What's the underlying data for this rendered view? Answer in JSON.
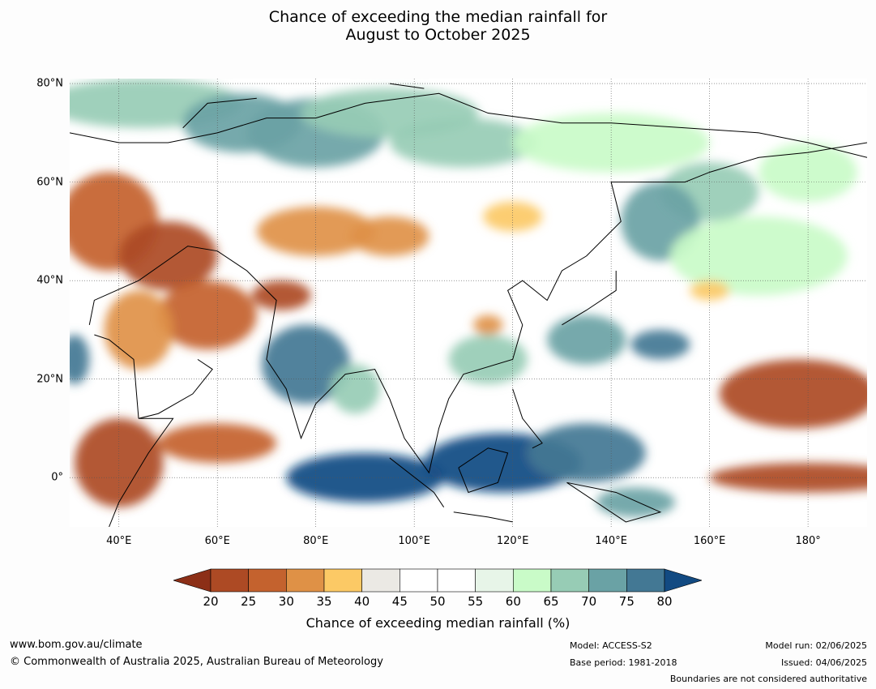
{
  "title": {
    "line1": "Chance of exceeding the median rainfall for",
    "line2": "August to October 2025"
  },
  "map": {
    "extent": {
      "lon_min": 30,
      "lon_max": 192,
      "lat_min": -10,
      "lat_max": 81
    },
    "lat_labels": [
      {
        "lat": 80,
        "label": "80°N"
      },
      {
        "lat": 60,
        "label": "60°N"
      },
      {
        "lat": 40,
        "label": "40°N"
      },
      {
        "lat": 20,
        "label": "20°N"
      },
      {
        "lat": 0,
        "label": "0°"
      }
    ],
    "lon_labels": [
      {
        "lon": 40,
        "label": "40°E"
      },
      {
        "lon": 60,
        "label": "60°E"
      },
      {
        "lon": 80,
        "label": "80°E"
      },
      {
        "lon": 100,
        "label": "100°E"
      },
      {
        "lon": 120,
        "label": "120°E"
      },
      {
        "lon": 140,
        "label": "140°E"
      },
      {
        "lon": 160,
        "label": "160°E"
      },
      {
        "lon": 180,
        "label": "180°"
      }
    ],
    "regions": [
      {
        "name": "arctic-north-europe",
        "lon": 45,
        "lat": 76,
        "rx": 20,
        "ry": 5,
        "value": 67
      },
      {
        "name": "barents-sea",
        "lon": 65,
        "lat": 72,
        "rx": 12,
        "ry": 6,
        "value": 70
      },
      {
        "name": "northwest-siberia",
        "lon": 80,
        "lat": 70,
        "rx": 14,
        "ry": 7,
        "value": 72
      },
      {
        "name": "arctic-coast",
        "lon": 95,
        "lat": 74,
        "rx": 18,
        "ry": 5,
        "value": 68
      },
      {
        "name": "central-siberia",
        "lon": 110,
        "lat": 68,
        "rx": 15,
        "ry": 5,
        "value": 65
      },
      {
        "name": "east-siberia",
        "lon": 140,
        "lat": 68,
        "rx": 20,
        "ry": 6,
        "value": 60
      },
      {
        "name": "kamchatka",
        "lon": 160,
        "lat": 58,
        "rx": 10,
        "ry": 6,
        "value": 68
      },
      {
        "name": "bering",
        "lon": 180,
        "lat": 62,
        "rx": 10,
        "ry": 6,
        "value": 63
      },
      {
        "name": "sea-of-okhotsk",
        "lon": 150,
        "lat": 52,
        "rx": 8,
        "ry": 8,
        "value": 70
      },
      {
        "name": "north-pacific",
        "lon": 170,
        "lat": 45,
        "rx": 18,
        "ry": 8,
        "value": 62
      },
      {
        "name": "europe-russia-dry",
        "lon": 38,
        "lat": 52,
        "rx": 10,
        "ry": 10,
        "value": 28
      },
      {
        "name": "caspian-dry",
        "lon": 50,
        "lat": 45,
        "rx": 10,
        "ry": 7,
        "value": 24
      },
      {
        "name": "central-asia-dry",
        "lon": 80,
        "lat": 50,
        "rx": 12,
        "ry": 5,
        "value": 30
      },
      {
        "name": "mongolia-dry",
        "lon": 95,
        "lat": 49,
        "rx": 8,
        "ry": 4,
        "value": 33
      },
      {
        "name": "manchuria-dry",
        "lon": 120,
        "lat": 53,
        "rx": 6,
        "ry": 3,
        "value": 36
      },
      {
        "name": "iran-dry",
        "lon": 58,
        "lat": 33,
        "rx": 10,
        "ry": 7,
        "value": 27
      },
      {
        "name": "arabia-dry",
        "lon": 44,
        "lat": 30,
        "rx": 7,
        "ry": 8,
        "value": 32
      },
      {
        "name": "himalaya-dry",
        "lon": 73,
        "lat": 37,
        "rx": 6,
        "ry": 3,
        "value": 22
      },
      {
        "name": "india-wet",
        "lon": 78,
        "lat": 23,
        "rx": 9,
        "ry": 8,
        "value": 76
      },
      {
        "name": "bay-of-bengal",
        "lon": 88,
        "lat": 18,
        "rx": 5,
        "ry": 5,
        "value": 66
      },
      {
        "name": "red-sea-wet",
        "lon": 31,
        "lat": 24,
        "rx": 3,
        "ry": 5,
        "value": 76
      },
      {
        "name": "horn-of-africa-dry",
        "lon": 40,
        "lat": 3,
        "rx": 9,
        "ry": 9,
        "value": 24
      },
      {
        "name": "arabian-sea-dry",
        "lon": 60,
        "lat": 7,
        "rx": 12,
        "ry": 4,
        "value": 28
      },
      {
        "name": "east-indian-ocean-wet",
        "lon": 90,
        "lat": 0,
        "rx": 16,
        "ry": 5,
        "value": 82
      },
      {
        "name": "maritime-continent-wet",
        "lon": 118,
        "lat": 3,
        "rx": 16,
        "ry": 6,
        "value": 82
      },
      {
        "name": "philippine-sea-wet",
        "lon": 135,
        "lat": 5,
        "rx": 12,
        "ry": 6,
        "value": 76
      },
      {
        "name": "west-pacific-dry",
        "lon": 178,
        "lat": 17,
        "rx": 16,
        "ry": 7,
        "value": 22
      },
      {
        "name": "equatorial-pacific-dry",
        "lon": 180,
        "lat": 0,
        "rx": 20,
        "ry": 3,
        "value": 20
      },
      {
        "name": "south-china-wet",
        "lon": 115,
        "lat": 24,
        "rx": 8,
        "ry": 5,
        "value": 66
      },
      {
        "name": "yangtze-dry",
        "lon": 115,
        "lat": 31,
        "rx": 3,
        "ry": 2,
        "value": 33
      },
      {
        "name": "east-china-sea-wet",
        "lon": 135,
        "lat": 28,
        "rx": 8,
        "ry": 5,
        "value": 73
      },
      {
        "name": "tropical-pacific-wet",
        "lon": 150,
        "lat": 27,
        "rx": 6,
        "ry": 3,
        "value": 78
      },
      {
        "name": "new-guinea-wet",
        "lon": 145,
        "lat": -5,
        "rx": 8,
        "ry": 3,
        "value": 74
      },
      {
        "name": "south-pacific-dry-belt",
        "lon": 160,
        "lat": 38,
        "rx": 4,
        "ry": 2,
        "value": 35
      }
    ]
  },
  "colorbar": {
    "ticks": [
      "20",
      "25",
      "30",
      "35",
      "40",
      "45",
      "50",
      "55",
      "60",
      "65",
      "70",
      "75",
      "80"
    ],
    "colors": [
      "#8c2f17",
      "#ad4a24",
      "#c4622e",
      "#df9146",
      "#fcc965",
      "#ebe9e4",
      "#ffffff",
      "#ffffff",
      "#e7f5e8",
      "#c9fbc8",
      "#97ccb5",
      "#6aa2a5",
      "#437894",
      "#124a82"
    ],
    "label": "Chance of exceeding median rainfall (%)"
  },
  "footer": {
    "website": "www.bom.gov.au/climate",
    "copyright": "© Commonwealth of Australia 2025, Australian Bureau of Meteorology",
    "model": "Model: ACCESS-S2",
    "base_period": "Base period: 1981-2018",
    "model_run": "Model run: 02/06/2025",
    "issued": "Issued: 04/06/2025",
    "disclaimer": "Boundaries are not considered authoritative"
  }
}
